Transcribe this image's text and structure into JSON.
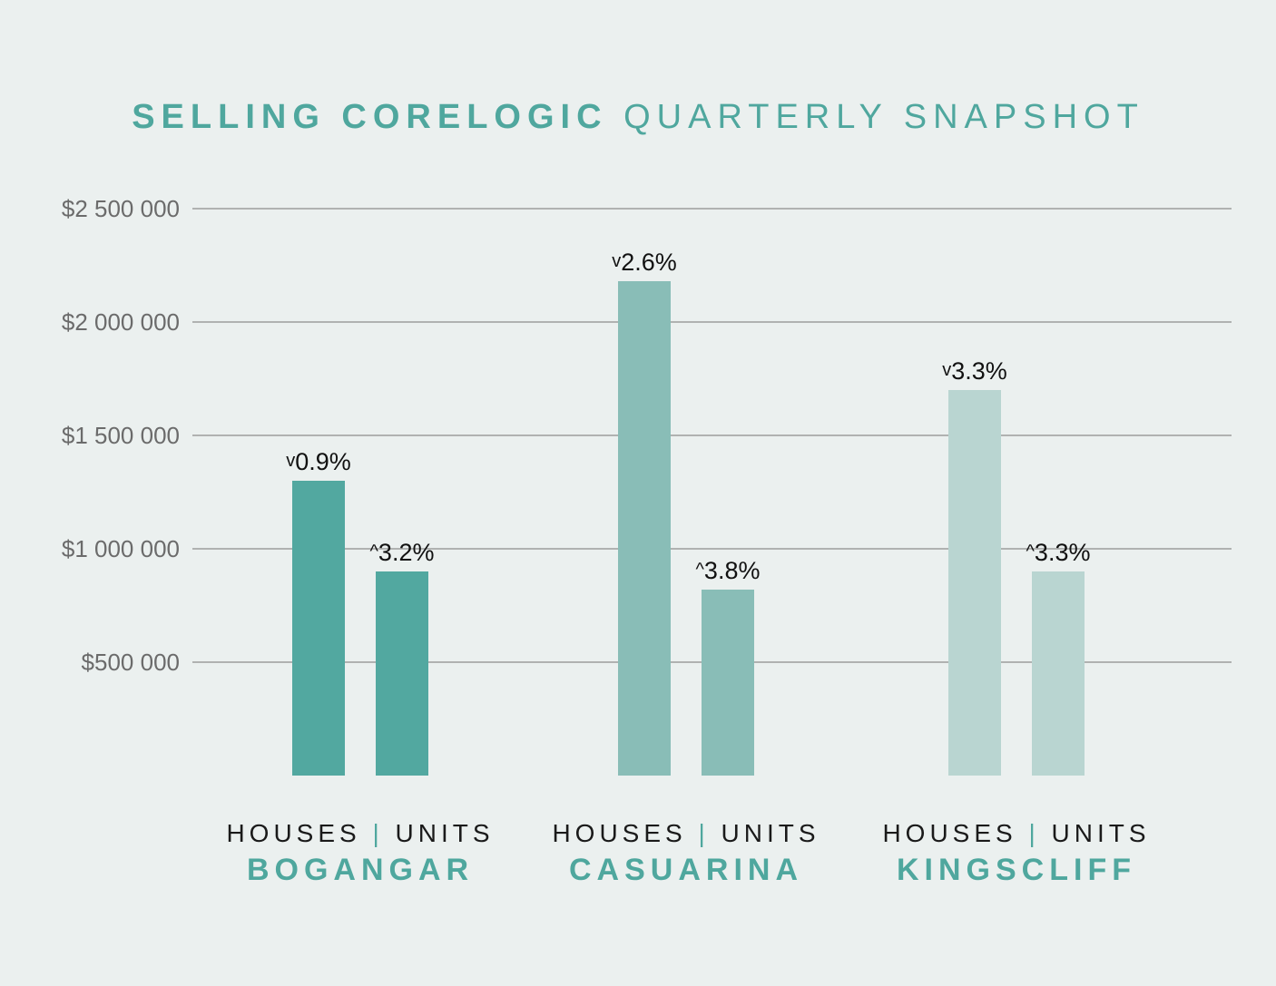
{
  "title": {
    "bold": "SELLING CORELOGIC",
    "light": "QUARTERLY SNAPSHOT"
  },
  "colors": {
    "background": "#ebf0ef",
    "accent": "#4fa79e",
    "gridline": "#8c8c8c",
    "tick_text": "#6b6b6b",
    "annotation_text": "#111111"
  },
  "chart_data": {
    "type": "bar",
    "ylim": [
      0,
      2500000
    ],
    "yticks": [
      {
        "value": 500000,
        "label": "$500 000"
      },
      {
        "value": 1000000,
        "label": "$1 000 000"
      },
      {
        "value": 1500000,
        "label": "$1 500 000"
      },
      {
        "value": 2000000,
        "label": "$2 000 000"
      },
      {
        "value": 2500000,
        "label": "$2 500 000"
      }
    ],
    "grid": true,
    "groups": [
      {
        "name": "BOGANGAR",
        "sublabel_left": "HOUSES",
        "separator": "|",
        "sublabel_right": "UNITS",
        "color": "#52a8a0",
        "bars": [
          {
            "category": "HOUSES",
            "value": 1300000,
            "change": "0.9%",
            "direction": "down",
            "arrow": "v"
          },
          {
            "category": "UNITS",
            "value": 900000,
            "change": "3.2%",
            "direction": "up",
            "arrow": "^"
          }
        ]
      },
      {
        "name": "CASUARINA",
        "sublabel_left": "HOUSES",
        "separator": "|",
        "sublabel_right": "UNITS",
        "color": "#89bdb7",
        "bars": [
          {
            "category": "HOUSES",
            "value": 2180000,
            "change": "2.6%",
            "direction": "down",
            "arrow": "v"
          },
          {
            "category": "UNITS",
            "value": 820000,
            "change": "3.8%",
            "direction": "up",
            "arrow": "^"
          }
        ]
      },
      {
        "name": "KINGSCLIFF",
        "sublabel_left": "HOUSES",
        "separator": "|",
        "sublabel_right": "UNITS",
        "color": "#b9d5d1",
        "bars": [
          {
            "category": "HOUSES",
            "value": 1700000,
            "change": "3.3%",
            "direction": "down",
            "arrow": "v"
          },
          {
            "category": "UNITS",
            "value": 900000,
            "change": "3.3%",
            "direction": "up",
            "arrow": "^"
          }
        ]
      }
    ]
  }
}
